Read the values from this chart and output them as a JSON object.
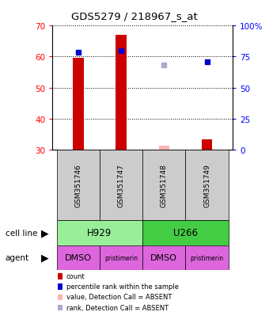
{
  "title": "GDS5279 / 218967_s_at",
  "samples": [
    "GSM351746",
    "GSM351747",
    "GSM351748",
    "GSM351749"
  ],
  "bar_values": [
    59.5,
    67.0,
    null,
    33.5
  ],
  "bar_values_absent": [
    null,
    null,
    31.5,
    null
  ],
  "rank_values": [
    78.5,
    80.0,
    null,
    71.0
  ],
  "rank_values_absent": [
    null,
    null,
    68.5,
    null
  ],
  "bar_color": "#cc0000",
  "bar_color_absent": "#ffb3b3",
  "rank_color": "#0000cc",
  "rank_color_absent": "#aaaacc",
  "ylim_left": [
    30,
    70
  ],
  "ylim_right": [
    0,
    100
  ],
  "yticks_left": [
    30,
    40,
    50,
    60,
    70
  ],
  "yticks_right": [
    0,
    25,
    50,
    75,
    100
  ],
  "samples_bg": "#cccccc",
  "cell_line_groups": [
    {
      "label": "H929",
      "start": 0,
      "end": 1,
      "color": "#99ee99"
    },
    {
      "label": "U266",
      "start": 2,
      "end": 3,
      "color": "#44cc44"
    }
  ],
  "agents": [
    "DMSO",
    "pristimerin",
    "DMSO",
    "pristimerin"
  ],
  "agent_color": "#dd66dd",
  "bar_width": 0.25,
  "legend_items": [
    {
      "color": "#cc0000",
      "label": "count"
    },
    {
      "color": "#0000cc",
      "label": "percentile rank within the sample"
    },
    {
      "color": "#ffb3b3",
      "label": "value, Detection Call = ABSENT"
    },
    {
      "color": "#aaaacc",
      "label": "rank, Detection Call = ABSENT"
    }
  ]
}
